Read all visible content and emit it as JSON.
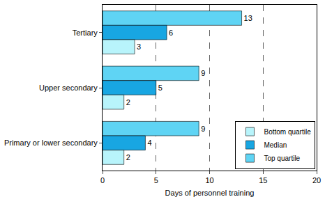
{
  "chart_data": {
    "type": "bar",
    "orientation": "horizontal",
    "categories": [
      "Tertiary",
      "Upper secondary",
      "Primary or lower secondary"
    ],
    "series": [
      {
        "name": "Bottom quartile",
        "color": "#b8f4fb",
        "values": [
          3,
          2,
          2
        ]
      },
      {
        "name": "Median",
        "color": "#18a6e2",
        "values": [
          6,
          5,
          4
        ]
      },
      {
        "name": "Top quartile",
        "color": "#5fd4f4",
        "values": [
          13,
          9,
          9
        ]
      }
    ],
    "x_label": "Days of personnel training",
    "xlim": [
      0,
      20
    ],
    "xticks": [
      0,
      5,
      10,
      15,
      20
    ],
    "grid": true,
    "legend": "lower right",
    "data_labels": true
  }
}
